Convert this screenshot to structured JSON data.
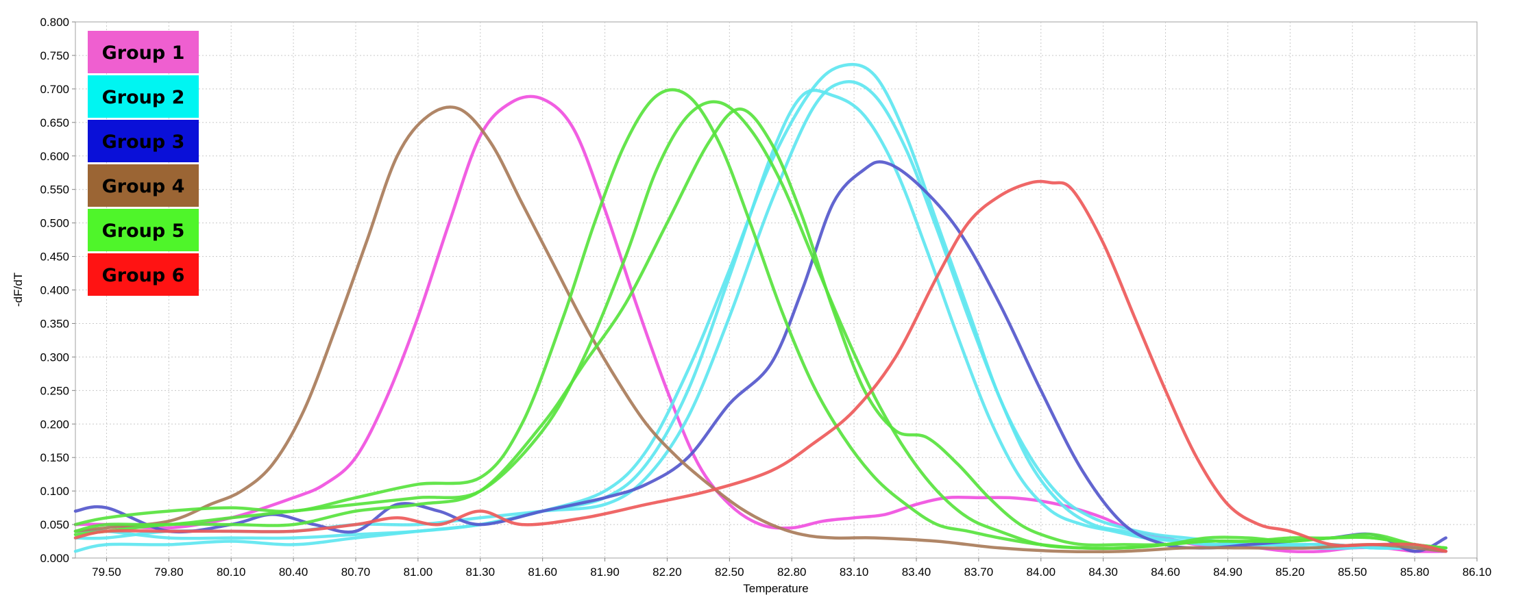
{
  "chart_data": {
    "type": "line",
    "xlabel": "Temperature",
    "ylabel": "-dF/dT",
    "xlim": [
      79.35,
      86.1
    ],
    "ylim": [
      0,
      0.8
    ],
    "x_ticks": [
      "79.50",
      "79.80",
      "80.10",
      "80.40",
      "80.70",
      "81.00",
      "81.30",
      "81.60",
      "81.90",
      "82.20",
      "82.50",
      "82.80",
      "83.10",
      "83.40",
      "83.70",
      "84.00",
      "84.30",
      "84.60",
      "84.90",
      "85.20",
      "85.50",
      "85.80",
      "86.10"
    ],
    "y_ticks": [
      "0.000",
      "0.050",
      "0.100",
      "0.150",
      "0.200",
      "0.250",
      "0.300",
      "0.350",
      "0.400",
      "0.450",
      "0.500",
      "0.550",
      "0.600",
      "0.650",
      "0.700",
      "0.750",
      "0.800"
    ],
    "grid": true,
    "legend_position": "top-left",
    "legend": [
      {
        "label": "Group 1",
        "bg": "#ef5fd0",
        "text_color": "#000000"
      },
      {
        "label": "Group 2",
        "bg": "#00f5f2",
        "text_color": "#000000"
      },
      {
        "label": "Group 3",
        "bg": "#0a10d8",
        "text_color": "#000000"
      },
      {
        "label": "Group 4",
        "bg": "#9b6534",
        "text_color": "#000000"
      },
      {
        "label": "Group 5",
        "bg": "#4ff52a",
        "text_color": "#000000"
      },
      {
        "label": "Group 6",
        "bg": "#ff1313",
        "text_color": "#000000"
      }
    ],
    "series": [
      {
        "group": "Group 1",
        "color": "#f050e0",
        "x": [
          79.35,
          79.5,
          79.8,
          80.1,
          80.4,
          80.55,
          80.7,
          80.85,
          81.0,
          81.15,
          81.3,
          81.45,
          81.6,
          81.75,
          81.9,
          82.05,
          82.2,
          82.35,
          82.5,
          82.65,
          82.8,
          82.95,
          83.1,
          83.25,
          83.4,
          83.55,
          83.7,
          83.85,
          84.0,
          84.15,
          84.3,
          84.45,
          84.6,
          84.75,
          84.9,
          85.05,
          85.2,
          85.35,
          85.5,
          85.65,
          85.8,
          85.95
        ],
        "y": [
          0.05,
          0.05,
          0.045,
          0.06,
          0.09,
          0.11,
          0.15,
          0.24,
          0.36,
          0.5,
          0.63,
          0.68,
          0.685,
          0.64,
          0.52,
          0.38,
          0.25,
          0.14,
          0.08,
          0.05,
          0.045,
          0.055,
          0.06,
          0.065,
          0.08,
          0.09,
          0.09,
          0.09,
          0.085,
          0.075,
          0.06,
          0.04,
          0.03,
          0.02,
          0.02,
          0.015,
          0.01,
          0.01,
          0.015,
          0.015,
          0.01,
          0.01
        ]
      },
      {
        "group": "Group 2",
        "color": "#5ee6f0",
        "x": [
          79.35,
          79.5,
          79.8,
          80.1,
          80.4,
          80.7,
          81.0,
          81.3,
          81.6,
          81.9,
          82.1,
          82.3,
          82.5,
          82.7,
          82.85,
          83.0,
          83.15,
          83.3,
          83.45,
          83.6,
          83.75,
          83.9,
          84.05,
          84.2,
          84.35,
          84.5,
          84.65,
          84.8,
          84.95,
          85.1,
          85.3,
          85.5,
          85.7,
          85.95
        ],
        "y": [
          0.01,
          0.02,
          0.02,
          0.025,
          0.02,
          0.03,
          0.04,
          0.05,
          0.07,
          0.09,
          0.14,
          0.25,
          0.42,
          0.6,
          0.69,
          0.69,
          0.66,
          0.58,
          0.46,
          0.33,
          0.21,
          0.12,
          0.07,
          0.05,
          0.04,
          0.03,
          0.025,
          0.02,
          0.02,
          0.02,
          0.015,
          0.015,
          0.02,
          0.01
        ]
      },
      {
        "group": "Group 2",
        "color": "#5ee6f0",
        "x": [
          79.35,
          79.5,
          79.8,
          80.1,
          80.4,
          80.7,
          81.0,
          81.3,
          81.6,
          81.9,
          82.1,
          82.3,
          82.5,
          82.7,
          82.9,
          83.05,
          83.2,
          83.35,
          83.5,
          83.65,
          83.8,
          83.95,
          84.1,
          84.25,
          84.4,
          84.55,
          84.7,
          84.85,
          85.0,
          85.2,
          85.4,
          85.6,
          85.8,
          85.95
        ],
        "y": [
          0.03,
          0.03,
          0.04,
          0.04,
          0.04,
          0.05,
          0.05,
          0.06,
          0.07,
          0.08,
          0.12,
          0.21,
          0.36,
          0.53,
          0.67,
          0.71,
          0.69,
          0.61,
          0.49,
          0.36,
          0.24,
          0.14,
          0.08,
          0.05,
          0.04,
          0.03,
          0.025,
          0.02,
          0.02,
          0.02,
          0.02,
          0.015,
          0.015,
          0.015
        ]
      },
      {
        "group": "Group 2",
        "color": "#5ee6f0",
        "x": [
          79.35,
          79.5,
          79.8,
          80.1,
          80.4,
          80.7,
          81.0,
          81.3,
          81.6,
          81.9,
          82.1,
          82.3,
          82.5,
          82.7,
          82.9,
          83.05,
          83.2,
          83.35,
          83.5,
          83.65,
          83.8,
          83.95,
          84.1,
          84.25,
          84.4,
          84.55,
          84.7,
          84.85,
          85.0,
          85.2,
          85.4,
          85.6,
          85.8,
          85.95
        ],
        "y": [
          0.04,
          0.04,
          0.03,
          0.03,
          0.03,
          0.035,
          0.04,
          0.05,
          0.07,
          0.1,
          0.16,
          0.28,
          0.43,
          0.59,
          0.7,
          0.735,
          0.72,
          0.63,
          0.5,
          0.37,
          0.24,
          0.15,
          0.09,
          0.06,
          0.045,
          0.035,
          0.03,
          0.025,
          0.02,
          0.02,
          0.02,
          0.015,
          0.015,
          0.015
        ]
      },
      {
        "group": "Group 3",
        "color": "#5558cc",
        "x": [
          79.35,
          79.5,
          79.8,
          80.1,
          80.3,
          80.5,
          80.7,
          80.9,
          81.1,
          81.3,
          81.6,
          81.9,
          82.1,
          82.3,
          82.5,
          82.7,
          82.85,
          83.0,
          83.15,
          83.25,
          83.4,
          83.6,
          83.8,
          84.0,
          84.2,
          84.4,
          84.6,
          84.8,
          85.0,
          85.2,
          85.4,
          85.6,
          85.8,
          85.95
        ],
        "y": [
          0.07,
          0.075,
          0.04,
          0.05,
          0.065,
          0.05,
          0.04,
          0.08,
          0.07,
          0.05,
          0.07,
          0.09,
          0.11,
          0.15,
          0.23,
          0.29,
          0.4,
          0.53,
          0.58,
          0.59,
          0.56,
          0.49,
          0.38,
          0.25,
          0.13,
          0.05,
          0.02,
          0.015,
          0.02,
          0.025,
          0.03,
          0.035,
          0.01,
          0.03
        ]
      },
      {
        "group": "Group 4",
        "color": "#a97c5a",
        "x": [
          79.35,
          79.5,
          79.8,
          80.0,
          80.15,
          80.3,
          80.45,
          80.6,
          80.75,
          80.9,
          81.05,
          81.2,
          81.35,
          81.5,
          81.65,
          81.8,
          81.95,
          82.1,
          82.25,
          82.4,
          82.55,
          82.7,
          82.85,
          83.0,
          83.2,
          83.5,
          83.8,
          84.1,
          84.4,
          84.7,
          85.0,
          85.3,
          85.6,
          85.95
        ],
        "y": [
          0.04,
          0.045,
          0.055,
          0.08,
          0.1,
          0.14,
          0.22,
          0.34,
          0.47,
          0.6,
          0.66,
          0.67,
          0.62,
          0.53,
          0.44,
          0.35,
          0.27,
          0.2,
          0.15,
          0.11,
          0.075,
          0.05,
          0.035,
          0.03,
          0.03,
          0.025,
          0.015,
          0.01,
          0.01,
          0.015,
          0.015,
          0.015,
          0.02,
          0.01
        ]
      },
      {
        "group": "Group 5",
        "color": "#58e33e",
        "x": [
          79.35,
          79.5,
          79.8,
          80.1,
          80.4,
          80.7,
          81.0,
          81.3,
          81.5,
          81.7,
          81.85,
          82.0,
          82.15,
          82.3,
          82.45,
          82.6,
          82.75,
          82.9,
          83.05,
          83.2,
          83.35,
          83.5,
          83.65,
          83.8,
          84.0,
          84.2,
          84.4,
          84.6,
          84.8,
          85.0,
          85.2,
          85.4,
          85.6,
          85.8,
          85.95
        ],
        "y": [
          0.05,
          0.06,
          0.07,
          0.075,
          0.07,
          0.09,
          0.11,
          0.12,
          0.2,
          0.36,
          0.5,
          0.62,
          0.69,
          0.69,
          0.62,
          0.5,
          0.37,
          0.26,
          0.18,
          0.12,
          0.08,
          0.05,
          0.04,
          0.03,
          0.02,
          0.015,
          0.015,
          0.02,
          0.025,
          0.025,
          0.03,
          0.03,
          0.035,
          0.02,
          0.015
        ]
      },
      {
        "group": "Group 5",
        "color": "#58e33e",
        "x": [
          79.35,
          79.5,
          79.8,
          80.1,
          80.4,
          80.7,
          81.0,
          81.3,
          81.6,
          81.8,
          82.0,
          82.15,
          82.3,
          82.45,
          82.6,
          82.75,
          82.9,
          83.05,
          83.2,
          83.35,
          83.5,
          83.65,
          83.8,
          84.0,
          84.2,
          84.4,
          84.6,
          84.8,
          85.0,
          85.2,
          85.4,
          85.6,
          85.8,
          85.95
        ],
        "y": [
          0.04,
          0.05,
          0.05,
          0.06,
          0.07,
          0.08,
          0.09,
          0.1,
          0.19,
          0.3,
          0.45,
          0.58,
          0.66,
          0.68,
          0.64,
          0.56,
          0.45,
          0.34,
          0.24,
          0.16,
          0.1,
          0.06,
          0.04,
          0.02,
          0.015,
          0.015,
          0.02,
          0.03,
          0.03,
          0.025,
          0.03,
          0.03,
          0.02,
          0.015
        ]
      },
      {
        "group": "Group 5",
        "color": "#58e33e",
        "x": [
          79.35,
          79.5,
          79.8,
          80.1,
          80.4,
          80.7,
          81.0,
          81.3,
          81.6,
          81.8,
          82.0,
          82.2,
          82.4,
          82.55,
          82.7,
          82.85,
          83.0,
          83.15,
          83.3,
          83.45,
          83.6,
          83.75,
          83.9,
          84.05,
          84.2,
          84.4,
          84.6,
          84.8,
          85.0,
          85.2,
          85.4,
          85.6,
          85.8,
          85.95
        ],
        "y": [
          0.035,
          0.04,
          0.05,
          0.05,
          0.05,
          0.07,
          0.08,
          0.1,
          0.2,
          0.29,
          0.38,
          0.5,
          0.62,
          0.67,
          0.62,
          0.51,
          0.37,
          0.25,
          0.19,
          0.18,
          0.14,
          0.09,
          0.05,
          0.03,
          0.02,
          0.02,
          0.02,
          0.025,
          0.025,
          0.025,
          0.03,
          0.03,
          0.02,
          0.015
        ]
      },
      {
        "group": "Group 6",
        "color": "#ee5a5a",
        "x": [
          79.35,
          79.5,
          79.8,
          80.1,
          80.4,
          80.7,
          80.9,
          81.1,
          81.3,
          81.5,
          81.8,
          82.1,
          82.4,
          82.7,
          82.9,
          83.1,
          83.3,
          83.5,
          83.65,
          83.8,
          83.95,
          84.05,
          84.15,
          84.3,
          84.45,
          84.6,
          84.75,
          84.9,
          85.05,
          85.2,
          85.4,
          85.6,
          85.8,
          85.95
        ],
        "y": [
          0.03,
          0.04,
          0.04,
          0.04,
          0.04,
          0.05,
          0.06,
          0.05,
          0.07,
          0.05,
          0.06,
          0.08,
          0.1,
          0.13,
          0.17,
          0.22,
          0.3,
          0.42,
          0.5,
          0.54,
          0.56,
          0.56,
          0.55,
          0.47,
          0.36,
          0.25,
          0.15,
          0.08,
          0.05,
          0.04,
          0.02,
          0.02,
          0.02,
          0.01
        ]
      }
    ]
  }
}
